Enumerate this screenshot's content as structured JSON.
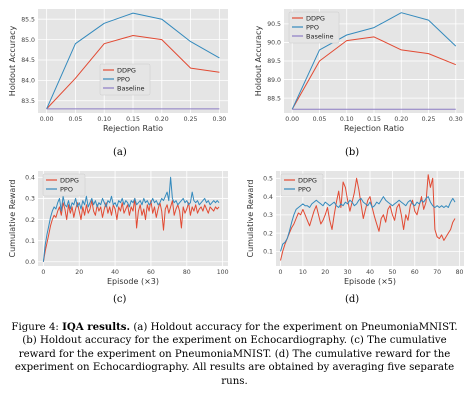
{
  "colors": {
    "ddpg": "#e24a33",
    "ppo": "#348abd",
    "baseline": "#8c7cc4",
    "plot_bg": "#e5e5e5",
    "grid": "#ffffff"
  },
  "chart_data": [
    {
      "id": "a",
      "type": "line",
      "sublabel": "(a)",
      "xlabel": "Rejection Ratio",
      "ylabel": "Holdout Accuracy",
      "xlim": [
        -0.015,
        0.315
      ],
      "ylim": [
        83.2,
        85.75
      ],
      "xticks": [
        0.0,
        0.05,
        0.1,
        0.15,
        0.2,
        0.25,
        0.3
      ],
      "xtick_labels": [
        "0.00",
        "0.05",
        "0.10",
        "0.15",
        "0.20",
        "0.25",
        "0.30"
      ],
      "yticks": [
        83.5,
        84.0,
        84.5,
        85.0,
        85.5
      ],
      "ytick_labels": [
        "83.5",
        "84.0",
        "84.5",
        "85.0",
        "85.5"
      ],
      "grid": true,
      "legend": "center",
      "series": [
        {
          "name": "DDPG",
          "color_key": "ddpg",
          "x": [
            0.0,
            0.05,
            0.1,
            0.15,
            0.2,
            0.25,
            0.3
          ],
          "y": [
            83.3,
            84.05,
            84.9,
            85.1,
            85.0,
            84.3,
            84.2
          ]
        },
        {
          "name": "PPO",
          "color_key": "ppo",
          "x": [
            0.0,
            0.05,
            0.1,
            0.15,
            0.2,
            0.25,
            0.3
          ],
          "y": [
            83.3,
            84.9,
            85.4,
            85.65,
            85.5,
            84.95,
            84.55
          ]
        },
        {
          "name": "Baseline",
          "color_key": "baseline",
          "x": [
            0.0,
            0.3
          ],
          "y": [
            83.3,
            83.3
          ]
        }
      ]
    },
    {
      "id": "b",
      "type": "line",
      "sublabel": "(b)",
      "xlabel": "Rejection Ratio",
      "ylabel": "Holdout Accuracy",
      "xlim": [
        -0.015,
        0.315
      ],
      "ylim": [
        88.1,
        90.9
      ],
      "xticks": [
        0.0,
        0.05,
        0.1,
        0.15,
        0.2,
        0.25,
        0.3
      ],
      "xtick_labels": [
        "0.00",
        "0.05",
        "0.10",
        "0.15",
        "0.20",
        "0.25",
        "0.30"
      ],
      "yticks": [
        88.5,
        89.0,
        89.5,
        90.0,
        90.5
      ],
      "ytick_labels": [
        "88.5",
        "89.0",
        "89.5",
        "90.0",
        "90.5"
      ],
      "grid": true,
      "legend": "top-left",
      "series": [
        {
          "name": "DDPG",
          "color_key": "ddpg",
          "x": [
            0.0,
            0.05,
            0.1,
            0.15,
            0.2,
            0.25,
            0.3
          ],
          "y": [
            88.2,
            89.5,
            90.05,
            90.15,
            89.8,
            89.7,
            89.4
          ]
        },
        {
          "name": "PPO",
          "color_key": "ppo",
          "x": [
            0.0,
            0.05,
            0.1,
            0.15,
            0.2,
            0.25,
            0.3
          ],
          "y": [
            88.2,
            89.8,
            90.2,
            90.4,
            90.8,
            90.6,
            89.9
          ]
        },
        {
          "name": "Baseline",
          "color_key": "baseline",
          "x": [
            0.0,
            0.3
          ],
          "y": [
            88.2,
            88.2
          ]
        }
      ]
    },
    {
      "id": "c",
      "type": "line",
      "sublabel": "(c)",
      "xlabel": "Episode (×3)",
      "ylabel": "Cumulative Reward",
      "xlim": [
        -3,
        103
      ],
      "ylim": [
        -0.02,
        0.43
      ],
      "xticks": [
        0,
        20,
        40,
        60,
        80,
        100
      ],
      "xtick_labels": [
        "0",
        "20",
        "40",
        "60",
        "80",
        "100"
      ],
      "yticks": [
        0.0,
        0.1,
        0.2,
        0.3,
        0.4
      ],
      "ytick_labels": [
        "0.0",
        "0.1",
        "0.2",
        "0.3",
        "0.4"
      ],
      "grid": true,
      "legend": "top-left",
      "series": [
        {
          "name": "DDPG",
          "color_key": "ddpg",
          "x": [
            0,
            1,
            2,
            3,
            4,
            5,
            6,
            7,
            8,
            9,
            10,
            11,
            12,
            13,
            14,
            15,
            16,
            17,
            18,
            19,
            20,
            21,
            22,
            23,
            24,
            25,
            26,
            27,
            28,
            29,
            30,
            31,
            32,
            33,
            34,
            35,
            36,
            37,
            38,
            39,
            40,
            41,
            42,
            43,
            44,
            45,
            46,
            47,
            48,
            49,
            50,
            51,
            52,
            53,
            54,
            55,
            56,
            57,
            58,
            59,
            60,
            61,
            62,
            63,
            64,
            65,
            66,
            67,
            68,
            69,
            70,
            71,
            72,
            73,
            74,
            75,
            76,
            77,
            78,
            79,
            80,
            81,
            82,
            83,
            84,
            85,
            86,
            87,
            88,
            89,
            90,
            91,
            92,
            93,
            94,
            95,
            96,
            97,
            98
          ],
          "y": [
            0.0,
            0.05,
            0.09,
            0.13,
            0.17,
            0.2,
            0.22,
            0.21,
            0.24,
            0.26,
            0.22,
            0.28,
            0.25,
            0.2,
            0.27,
            0.23,
            0.26,
            0.21,
            0.25,
            0.28,
            0.24,
            0.2,
            0.26,
            0.22,
            0.27,
            0.23,
            0.25,
            0.29,
            0.24,
            0.22,
            0.27,
            0.24,
            0.26,
            0.21,
            0.25,
            0.28,
            0.23,
            0.26,
            0.22,
            0.27,
            0.25,
            0.2,
            0.26,
            0.24,
            0.28,
            0.23,
            0.25,
            0.27,
            0.22,
            0.26,
            0.24,
            0.3,
            0.16,
            0.24,
            0.27,
            0.22,
            0.25,
            0.2,
            0.27,
            0.24,
            0.29,
            0.23,
            0.26,
            0.21,
            0.25,
            0.28,
            0.24,
            0.15,
            0.25,
            0.27,
            0.23,
            0.26,
            0.29,
            0.22,
            0.25,
            0.27,
            0.24,
            0.16,
            0.26,
            0.23,
            0.25,
            0.28,
            0.22,
            0.26,
            0.24,
            0.27,
            0.23,
            0.25,
            0.26,
            0.24,
            0.27,
            0.25,
            0.23,
            0.26,
            0.25,
            0.24,
            0.26,
            0.25,
            0.26
          ]
        },
        {
          "name": "PPO",
          "color_key": "ppo",
          "x": [
            0,
            1,
            2,
            3,
            4,
            5,
            6,
            7,
            8,
            9,
            10,
            11,
            12,
            13,
            14,
            15,
            16,
            17,
            18,
            19,
            20,
            21,
            22,
            23,
            24,
            25,
            26,
            27,
            28,
            29,
            30,
            31,
            32,
            33,
            34,
            35,
            36,
            37,
            38,
            39,
            40,
            41,
            42,
            43,
            44,
            45,
            46,
            47,
            48,
            49,
            50,
            51,
            52,
            53,
            54,
            55,
            56,
            57,
            58,
            59,
            60,
            61,
            62,
            63,
            64,
            65,
            66,
            67,
            68,
            69,
            70,
            71,
            72,
            73,
            74,
            75,
            76,
            77,
            78,
            79,
            80,
            81,
            82,
            83,
            84,
            85,
            86,
            87,
            88,
            89,
            90,
            91,
            92,
            93,
            94,
            95,
            96,
            97,
            98
          ],
          "y": [
            0.0,
            0.08,
            0.13,
            0.17,
            0.21,
            0.24,
            0.26,
            0.25,
            0.28,
            0.3,
            0.24,
            0.31,
            0.27,
            0.26,
            0.29,
            0.25,
            0.28,
            0.27,
            0.3,
            0.26,
            0.28,
            0.25,
            0.29,
            0.27,
            0.31,
            0.26,
            0.28,
            0.3,
            0.27,
            0.29,
            0.26,
            0.28,
            0.27,
            0.3,
            0.28,
            0.26,
            0.29,
            0.28,
            0.31,
            0.27,
            0.28,
            0.26,
            0.29,
            0.28,
            0.3,
            0.27,
            0.29,
            0.28,
            0.26,
            0.29,
            0.28,
            0.3,
            0.27,
            0.28,
            0.29,
            0.27,
            0.3,
            0.28,
            0.29,
            0.27,
            0.28,
            0.3,
            0.28,
            0.29,
            0.27,
            0.28,
            0.3,
            0.29,
            0.31,
            0.33,
            0.29,
            0.4,
            0.3,
            0.28,
            0.29,
            0.27,
            0.28,
            0.29,
            0.3,
            0.28,
            0.29,
            0.27,
            0.28,
            0.33,
            0.29,
            0.28,
            0.29,
            0.27,
            0.28,
            0.29,
            0.3,
            0.28,
            0.29,
            0.27,
            0.28,
            0.29,
            0.28,
            0.29,
            0.28
          ]
        }
      ]
    },
    {
      "id": "d",
      "type": "line",
      "sublabel": "(d)",
      "xlabel": "Episode (×5)",
      "ylabel": "Cumulative Reward",
      "xlim": [
        -2,
        82
      ],
      "ylim": [
        0.02,
        0.54
      ],
      "xticks": [
        0,
        10,
        20,
        30,
        40,
        50,
        60,
        70,
        80
      ],
      "xtick_labels": [
        "0",
        "10",
        "20",
        "30",
        "40",
        "50",
        "60",
        "70",
        "80"
      ],
      "yticks": [
        0.1,
        0.2,
        0.3,
        0.4,
        0.5
      ],
      "ytick_labels": [
        "0.1",
        "0.2",
        "0.3",
        "0.4",
        "0.5"
      ],
      "grid": true,
      "legend": "top-left",
      "series": [
        {
          "name": "DDPG",
          "color_key": "ddpg",
          "x": [
            0,
            1,
            2,
            3,
            4,
            5,
            6,
            7,
            8,
            9,
            10,
            11,
            12,
            13,
            14,
            15,
            16,
            17,
            18,
            19,
            20,
            21,
            22,
            23,
            24,
            25,
            26,
            27,
            28,
            29,
            30,
            31,
            32,
            33,
            34,
            35,
            36,
            37,
            38,
            39,
            40,
            41,
            42,
            43,
            44,
            45,
            46,
            47,
            48,
            49,
            50,
            51,
            52,
            53,
            54,
            55,
            56,
            57,
            58,
            59,
            60,
            61,
            62,
            63,
            64,
            65,
            66,
            67,
            68,
            69,
            70,
            71,
            72,
            73,
            74,
            75,
            76,
            77,
            78
          ],
          "y": [
            0.05,
            0.1,
            0.14,
            0.17,
            0.2,
            0.23,
            0.25,
            0.28,
            0.31,
            0.3,
            0.33,
            0.3,
            0.27,
            0.24,
            0.28,
            0.32,
            0.35,
            0.3,
            0.25,
            0.27,
            0.3,
            0.34,
            0.27,
            0.22,
            0.3,
            0.37,
            0.43,
            0.34,
            0.48,
            0.45,
            0.38,
            0.32,
            0.37,
            0.42,
            0.5,
            0.44,
            0.36,
            0.28,
            0.33,
            0.38,
            0.4,
            0.34,
            0.29,
            0.25,
            0.21,
            0.28,
            0.3,
            0.26,
            0.33,
            0.35,
            0.3,
            0.27,
            0.34,
            0.36,
            0.3,
            0.22,
            0.3,
            0.27,
            0.35,
            0.38,
            0.32,
            0.3,
            0.35,
            0.4,
            0.33,
            0.37,
            0.52,
            0.45,
            0.5,
            0.22,
            0.18,
            0.17,
            0.19,
            0.16,
            0.18,
            0.2,
            0.22,
            0.26,
            0.28
          ]
        },
        {
          "name": "PPO",
          "color_key": "ppo",
          "x": [
            0,
            1,
            2,
            3,
            4,
            5,
            6,
            7,
            8,
            9,
            10,
            11,
            12,
            13,
            14,
            15,
            16,
            17,
            18,
            19,
            20,
            21,
            22,
            23,
            24,
            25,
            26,
            27,
            28,
            29,
            30,
            31,
            32,
            33,
            34,
            35,
            36,
            37,
            38,
            39,
            40,
            41,
            42,
            43,
            44,
            45,
            46,
            47,
            48,
            49,
            50,
            51,
            52,
            53,
            54,
            55,
            56,
            57,
            58,
            59,
            60,
            61,
            62,
            63,
            64,
            65,
            66,
            67,
            68,
            69,
            70,
            71,
            72,
            73,
            74,
            75,
            76,
            77,
            78
          ],
          "y": [
            0.1,
            0.14,
            0.15,
            0.17,
            0.21,
            0.26,
            0.3,
            0.33,
            0.34,
            0.35,
            0.36,
            0.35,
            0.35,
            0.34,
            0.36,
            0.37,
            0.38,
            0.37,
            0.36,
            0.35,
            0.37,
            0.36,
            0.35,
            0.36,
            0.37,
            0.35,
            0.34,
            0.36,
            0.35,
            0.37,
            0.36,
            0.38,
            0.37,
            0.35,
            0.36,
            0.38,
            0.39,
            0.37,
            0.36,
            0.35,
            0.37,
            0.34,
            0.35,
            0.37,
            0.36,
            0.38,
            0.4,
            0.38,
            0.37,
            0.36,
            0.35,
            0.36,
            0.37,
            0.38,
            0.37,
            0.36,
            0.35,
            0.37,
            0.38,
            0.36,
            0.35,
            0.37,
            0.36,
            0.38,
            0.37,
            0.39,
            0.4,
            0.37,
            0.35,
            0.34,
            0.35,
            0.34,
            0.35,
            0.34,
            0.35,
            0.34,
            0.37,
            0.39,
            0.37
          ]
        }
      ]
    }
  ],
  "caption": {
    "figure_label": "Figure 4:",
    "bold": "IQA results.",
    "text": "(a) Holdout accuracy for the experiment on PneumoniaMNIST. (b) Holdout accuracy for the experiment on Echocardiography. (c) The cumulative reward for the experiment on PneumoniaMNIST. (d) The cumulative reward for the experiment on Echocardiography. All results are obtained by averaging five separate runs."
  }
}
